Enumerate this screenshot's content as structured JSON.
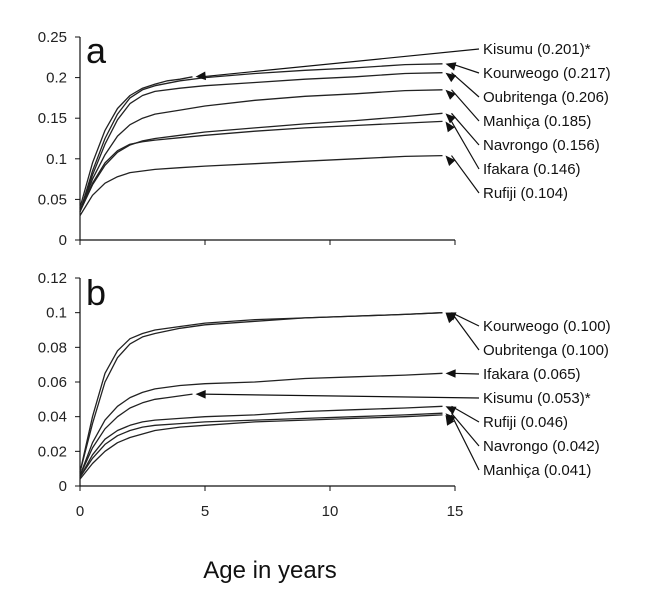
{
  "chart_data": [
    {
      "type": "line",
      "panel_label": "a",
      "ylim": [
        0,
        0.25
      ],
      "yticks": [
        "0",
        "0.05",
        "0.1",
        "0.15",
        "0.2",
        "0.25"
      ],
      "xlim": [
        0,
        15
      ],
      "grid": false,
      "series": [
        {
          "name": "Kisumu",
          "label": "Kisumu   (0.201)*",
          "end": 0.201,
          "x": [
            0,
            0.5,
            1,
            1.5,
            2,
            2.5,
            3,
            3.5,
            4,
            4.5
          ],
          "y": [
            0.04,
            0.095,
            0.135,
            0.162,
            0.178,
            0.187,
            0.192,
            0.196,
            0.198,
            0.201
          ]
        },
        {
          "name": "Kourweogo",
          "label": "Kourweogo (0.217)",
          "end": 0.217,
          "x": [
            0,
            0.5,
            1,
            1.5,
            2,
            2.5,
            3,
            4,
            5,
            7,
            9,
            11,
            13,
            14.5
          ],
          "y": [
            0.035,
            0.085,
            0.125,
            0.155,
            0.175,
            0.185,
            0.19,
            0.196,
            0.2,
            0.205,
            0.209,
            0.212,
            0.216,
            0.217
          ]
        },
        {
          "name": "Oubritenga",
          "label": "Oubritenga (0.206)",
          "end": 0.206,
          "x": [
            0,
            0.5,
            1,
            1.5,
            2,
            2.5,
            3,
            4,
            5,
            7,
            9,
            11,
            13,
            14.5
          ],
          "y": [
            0.035,
            0.08,
            0.118,
            0.148,
            0.168,
            0.178,
            0.183,
            0.187,
            0.19,
            0.194,
            0.198,
            0.201,
            0.205,
            0.206
          ]
        },
        {
          "name": "Manhiça",
          "label": "Manhiça (0.185)",
          "end": 0.185,
          "x": [
            0,
            0.5,
            1,
            1.5,
            2,
            2.5,
            3,
            4,
            5,
            7,
            9,
            11,
            13,
            14.5
          ],
          "y": [
            0.035,
            0.075,
            0.105,
            0.128,
            0.142,
            0.15,
            0.155,
            0.16,
            0.165,
            0.172,
            0.177,
            0.18,
            0.184,
            0.185
          ]
        },
        {
          "name": "Navrongo",
          "label": "Navrongo (0.156)",
          "end": 0.156,
          "x": [
            0,
            0.5,
            1,
            1.5,
            2,
            2.5,
            3,
            4,
            5,
            7,
            9,
            11,
            13,
            14.5
          ],
          "y": [
            0.035,
            0.068,
            0.092,
            0.108,
            0.117,
            0.122,
            0.125,
            0.129,
            0.133,
            0.138,
            0.143,
            0.147,
            0.152,
            0.156
          ]
        },
        {
          "name": "Ifakara",
          "label": "Ifakara (0.146)",
          "end": 0.146,
          "x": [
            0,
            0.5,
            1,
            1.5,
            2,
            2.5,
            3,
            4,
            5,
            7,
            9,
            11,
            13,
            14.5
          ],
          "y": [
            0.035,
            0.07,
            0.095,
            0.11,
            0.118,
            0.121,
            0.123,
            0.126,
            0.129,
            0.134,
            0.138,
            0.141,
            0.144,
            0.146
          ]
        },
        {
          "name": "Rufiji",
          "label": "Rufiji (0.104)",
          "end": 0.104,
          "x": [
            0,
            0.5,
            1,
            1.5,
            2,
            2.5,
            3,
            4,
            5,
            7,
            9,
            11,
            13,
            14.5
          ],
          "y": [
            0.03,
            0.055,
            0.07,
            0.078,
            0.083,
            0.085,
            0.087,
            0.089,
            0.091,
            0.094,
            0.097,
            0.1,
            0.103,
            0.104
          ]
        }
      ]
    },
    {
      "type": "line",
      "panel_label": "b",
      "ylim": [
        0,
        0.12
      ],
      "yticks": [
        "0",
        "0.02",
        "0.04",
        "0.06",
        "0.08",
        "0.1",
        "0.12"
      ],
      "xlim": [
        0,
        15
      ],
      "xticks": [
        "0",
        "5",
        "10",
        "15"
      ],
      "xlabel": "Age in years",
      "grid": false,
      "series": [
        {
          "name": "Kourweogo",
          "label": "Kourweogo (0.100)",
          "end": 0.1,
          "x": [
            0,
            0.5,
            1,
            1.5,
            2,
            2.5,
            3,
            4,
            5,
            7,
            9,
            11,
            13,
            14.5
          ],
          "y": [
            0.008,
            0.04,
            0.065,
            0.078,
            0.085,
            0.088,
            0.09,
            0.092,
            0.094,
            0.096,
            0.097,
            0.098,
            0.099,
            0.1
          ]
        },
        {
          "name": "Oubritenga",
          "label": "Oubritenga (0.100)",
          "end": 0.1,
          "x": [
            0,
            0.5,
            1,
            1.5,
            2,
            2.5,
            3,
            4,
            5,
            7,
            9,
            11,
            13,
            14.5
          ],
          "y": [
            0.008,
            0.036,
            0.06,
            0.074,
            0.082,
            0.086,
            0.088,
            0.091,
            0.093,
            0.095,
            0.097,
            0.098,
            0.099,
            0.1
          ]
        },
        {
          "name": "Ifakara",
          "label": "Ifakara (0.065)",
          "end": 0.065,
          "x": [
            0,
            0.5,
            1,
            1.5,
            2,
            2.5,
            3,
            4,
            5,
            7,
            9,
            11,
            13,
            14.5
          ],
          "y": [
            0.006,
            0.025,
            0.038,
            0.046,
            0.051,
            0.054,
            0.056,
            0.058,
            0.059,
            0.06,
            0.062,
            0.063,
            0.064,
            0.065
          ]
        },
        {
          "name": "Kisumu",
          "label": "Kisumu   (0.053)*",
          "end": 0.053,
          "x": [
            0,
            0.5,
            1,
            1.5,
            2,
            2.5,
            3,
            3.5,
            4,
            4.5
          ],
          "y": [
            0.006,
            0.022,
            0.033,
            0.04,
            0.045,
            0.048,
            0.05,
            0.051,
            0.052,
            0.053
          ]
        },
        {
          "name": "Rufiji",
          "label": "Rufiji (0.046)",
          "end": 0.046,
          "x": [
            0,
            0.5,
            1,
            1.5,
            2,
            2.5,
            3,
            4,
            5,
            7,
            9,
            11,
            13,
            14.5
          ],
          "y": [
            0.005,
            0.018,
            0.027,
            0.032,
            0.035,
            0.037,
            0.038,
            0.039,
            0.04,
            0.041,
            0.043,
            0.044,
            0.045,
            0.046
          ]
        },
        {
          "name": "Navrongo",
          "label": "Navrongo (0.042)",
          "end": 0.042,
          "x": [
            0,
            0.5,
            1,
            1.5,
            2,
            2.5,
            3,
            4,
            5,
            7,
            9,
            11,
            13,
            14.5
          ],
          "y": [
            0.005,
            0.016,
            0.024,
            0.029,
            0.032,
            0.034,
            0.035,
            0.036,
            0.037,
            0.038,
            0.039,
            0.04,
            0.041,
            0.042
          ]
        },
        {
          "name": "Manhiça",
          "label": "Manhiça (0.041)",
          "end": 0.041,
          "x": [
            0,
            0.5,
            1,
            1.5,
            2,
            2.5,
            3,
            4,
            5,
            7,
            9,
            11,
            13,
            14.5
          ],
          "y": [
            0.004,
            0.013,
            0.02,
            0.025,
            0.028,
            0.03,
            0.032,
            0.034,
            0.035,
            0.037,
            0.038,
            0.039,
            0.04,
            0.041
          ]
        }
      ]
    }
  ]
}
